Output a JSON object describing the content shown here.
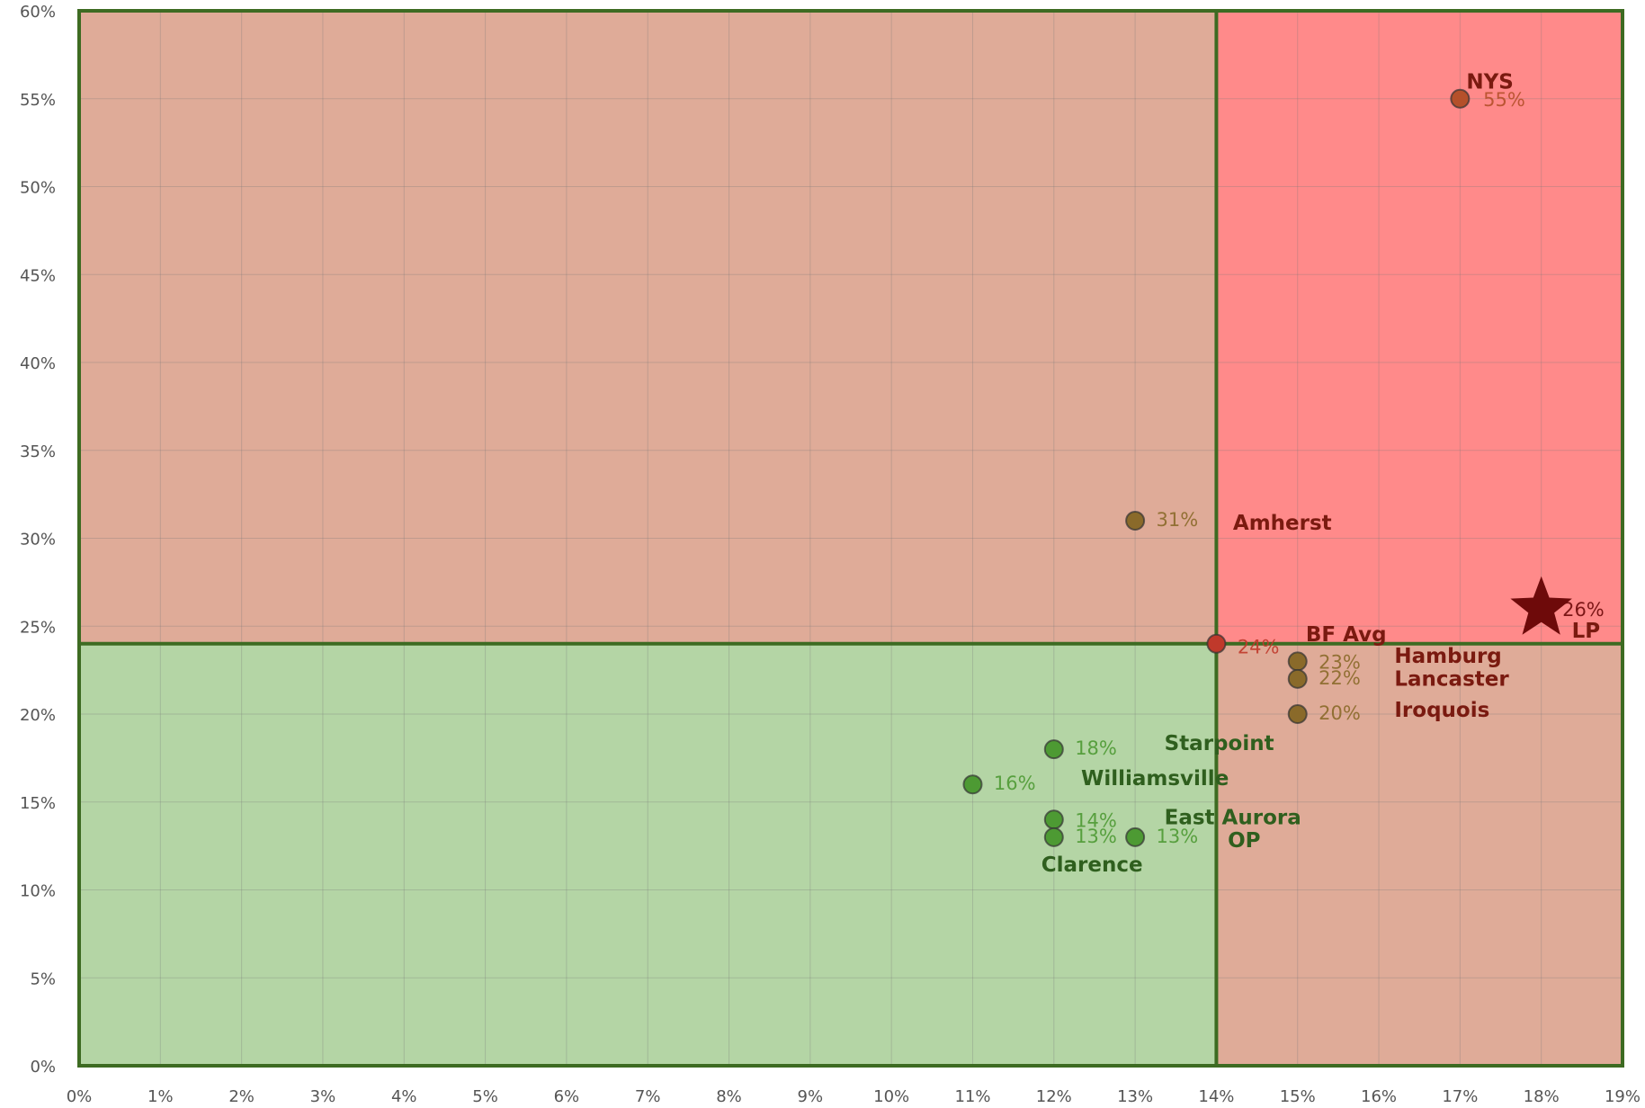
{
  "chart_data": {
    "type": "scatter",
    "labels": [
      "NYS",
      "Amherst",
      "BF Avg",
      "LP",
      "Hamburg",
      "Lancaster",
      "Iroquois",
      "Starpoint",
      "Williamsville",
      "East Aurora",
      "Clarence",
      "OP"
    ],
    "x": [
      17,
      13,
      14,
      18,
      15,
      15,
      15,
      12,
      11,
      12,
      12,
      13
    ],
    "values": [
      55,
      31,
      24,
      26,
      23,
      22,
      20,
      18,
      16,
      14,
      13,
      13
    ],
    "value_labels": [
      "55%",
      "31%",
      "24%",
      "26%",
      "23%",
      "22%",
      "20%",
      "18%",
      "16%",
      "14%",
      "13%",
      "13%"
    ],
    "colors": [
      "#b5502a",
      "#8a6a2a",
      "#c0392b",
      "#6e0a0a",
      "#8a6a2a",
      "#8a6a2a",
      "#8a6a2a",
      "#4d9a33",
      "#4d9a33",
      "#4d9a33",
      "#4d9a33",
      "#4d9a33"
    ],
    "markers": [
      "circle",
      "circle",
      "circle",
      "star",
      "circle",
      "circle",
      "circle",
      "circle",
      "circle",
      "circle",
      "circle",
      "circle"
    ],
    "quadrant_lines": {
      "x": 14,
      "y": 24,
      "color": "#3d6b22"
    },
    "region_colors": {
      "top_left": "#dfab98",
      "top_right": "#ff8a8a",
      "bottom_left": "#b4d5a5",
      "bottom_right": "#dfab98"
    },
    "xlim": [
      0,
      19
    ],
    "ylim": [
      0,
      60
    ],
    "xticks": [
      {
        "value": 0,
        "label": "0%"
      },
      {
        "value": 1,
        "label": "1%"
      },
      {
        "value": 2,
        "label": "2%"
      },
      {
        "value": 3,
        "label": "3%"
      },
      {
        "value": 4,
        "label": "4%"
      },
      {
        "value": 5,
        "label": "5%"
      },
      {
        "value": 6,
        "label": "6%"
      },
      {
        "value": 7,
        "label": "7%"
      },
      {
        "value": 8,
        "label": "8%"
      },
      {
        "value": 9,
        "label": "9%"
      },
      {
        "value": 10,
        "label": "10%"
      },
      {
        "value": 11,
        "label": "11%"
      },
      {
        "value": 12,
        "label": "12%"
      },
      {
        "value": 13,
        "label": "13%"
      },
      {
        "value": 14,
        "label": "14%"
      },
      {
        "value": 15,
        "label": "15%"
      },
      {
        "value": 16,
        "label": "16%"
      },
      {
        "value": 17,
        "label": "17%"
      },
      {
        "value": 18,
        "label": "18%"
      },
      {
        "value": 19,
        "label": "19%"
      }
    ],
    "yticks": [
      {
        "value": 0,
        "label": "0%"
      },
      {
        "value": 5,
        "label": "5%"
      },
      {
        "value": 10,
        "label": "10%"
      },
      {
        "value": 15,
        "label": "15%"
      },
      {
        "value": 20,
        "label": "20%"
      },
      {
        "value": 25,
        "label": "25%"
      },
      {
        "value": 30,
        "label": "30%"
      },
      {
        "value": 35,
        "label": "35%"
      },
      {
        "value": 40,
        "label": "40%"
      },
      {
        "value": 45,
        "label": "45%"
      },
      {
        "value": 50,
        "label": "50%"
      },
      {
        "value": 55,
        "label": "55%"
      },
      {
        "value": 60,
        "label": "60%"
      }
    ],
    "grid": true
  }
}
